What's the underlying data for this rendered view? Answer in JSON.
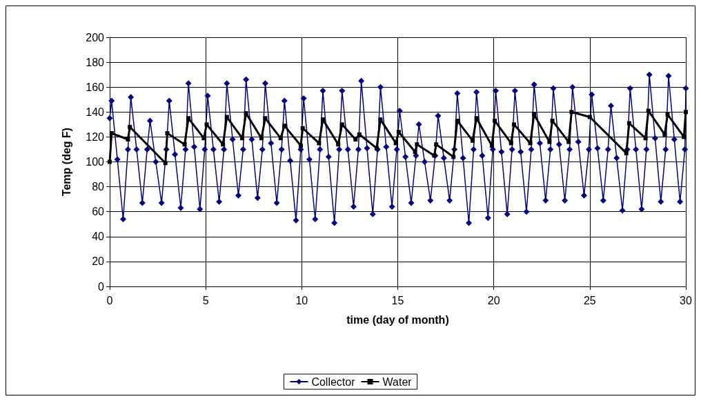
{
  "chart_data": {
    "type": "line",
    "xlabel": "time (day of month)",
    "ylabel": "Temp (deg F)",
    "xlim": [
      0,
      30
    ],
    "xticks": [
      0,
      5,
      10,
      15,
      20,
      25,
      30
    ],
    "ylim": [
      0,
      200
    ],
    "yticks": [
      0,
      20,
      40,
      60,
      80,
      100,
      120,
      140,
      160,
      180,
      200
    ],
    "grid": true,
    "legend": "bottom",
    "series": [
      {
        "name": "Collector",
        "color": "#000080",
        "marker": "diamond",
        "x": [
          0,
          0.1,
          0.4,
          0.7,
          0.95,
          1.1,
          1.4,
          1.7,
          1.95,
          2.1,
          2.4,
          2.7,
          2.95,
          3.1,
          3.4,
          3.7,
          3.95,
          4.1,
          4.4,
          4.7,
          4.95,
          5.1,
          5.4,
          5.7,
          5.95,
          6.1,
          6.4,
          6.7,
          6.95,
          7.1,
          7.4,
          7.7,
          7.95,
          8.1,
          8.4,
          8.7,
          8.95,
          9.1,
          9.4,
          9.7,
          9.95,
          10.1,
          10.4,
          10.7,
          10.95,
          11.1,
          11.4,
          11.7,
          11.95,
          12.1,
          12.4,
          12.7,
          12.95,
          13.1,
          13.4,
          13.7,
          13.95,
          14.1,
          14.4,
          14.7,
          14.95,
          15.1,
          15.4,
          15.7,
          15.95,
          16.1,
          16.4,
          16.7,
          16.95,
          17.1,
          17.4,
          17.7,
          17.95,
          18.1,
          18.4,
          18.7,
          18.95,
          19.1,
          19.4,
          19.7,
          19.95,
          20.1,
          20.4,
          20.7,
          20.95,
          21.1,
          21.4,
          21.7,
          21.95,
          22.1,
          22.4,
          22.7,
          22.95,
          23.1,
          23.4,
          23.7,
          23.95,
          24.1,
          24.4,
          24.7,
          24.95,
          25.1,
          25.4,
          25.7,
          25.95,
          26.1,
          26.4,
          26.7,
          26.95,
          27.1,
          27.4,
          27.7,
          27.95,
          28.1,
          28.4,
          28.7,
          28.95,
          29.1,
          29.4,
          29.7,
          29.95,
          30
        ],
        "values": [
          135,
          149,
          102,
          54,
          110,
          152,
          110,
          67,
          110,
          133,
          100,
          67,
          110,
          149,
          106,
          63,
          110,
          163,
          112,
          62,
          110,
          153,
          110,
          68,
          110,
          163,
          118,
          73,
          110,
          166,
          118,
          71,
          110,
          163,
          115,
          67,
          110,
          149,
          101,
          53,
          110,
          151,
          102,
          54,
          110,
          157,
          104,
          51,
          110,
          157,
          110,
          64,
          110,
          165,
          111,
          58,
          110,
          160,
          112,
          64,
          110,
          141,
          104,
          67,
          105,
          130,
          100,
          69,
          105,
          137,
          103,
          69,
          110,
          155,
          103,
          51,
          110,
          156,
          105,
          55,
          110,
          157,
          108,
          58,
          110,
          157,
          108,
          60,
          110,
          162,
          115,
          69,
          110,
          159,
          114,
          69,
          110,
          160,
          116,
          73,
          110,
          154,
          111,
          69,
          110,
          145,
          103,
          61,
          110,
          159,
          110,
          62,
          110,
          170,
          119,
          68,
          110,
          169,
          118,
          68,
          110,
          159
        ]
      },
      {
        "name": "Water",
        "color": "#000000",
        "marker": "square",
        "x": [
          0,
          0.1,
          0.95,
          1.05,
          2.9,
          3.0,
          3.9,
          4.1,
          4.9,
          5.05,
          5.9,
          6.1,
          6.9,
          7.1,
          7.9,
          8.1,
          8.9,
          9.1,
          9.95,
          10.05,
          10.9,
          11.1,
          11.9,
          12.1,
          12.8,
          13,
          13.9,
          14.1,
          14.9,
          15.05,
          15.9,
          16,
          16.9,
          17,
          17.9,
          18.1,
          18.9,
          19.1,
          19.9,
          20.05,
          20.9,
          21.05,
          21.9,
          22.1,
          22.9,
          23.05,
          23.9,
          24.05,
          25,
          26.9,
          27.05,
          27.9,
          28.05,
          28.9,
          29.05,
          29.9,
          30
        ],
        "values": [
          100,
          123,
          118,
          128,
          99,
          123,
          114,
          135,
          119,
          130,
          114,
          136,
          119,
          139,
          119,
          135,
          119,
          129,
          113,
          127,
          115,
          134,
          114,
          130,
          118,
          122,
          111,
          134,
          115,
          124,
          108,
          114,
          105,
          114,
          104,
          133,
          117,
          135,
          113,
          133,
          115,
          130,
          115,
          138,
          116,
          133,
          116,
          140,
          136,
          107,
          131,
          119,
          141,
          122,
          138,
          120,
          140
        ]
      }
    ]
  }
}
